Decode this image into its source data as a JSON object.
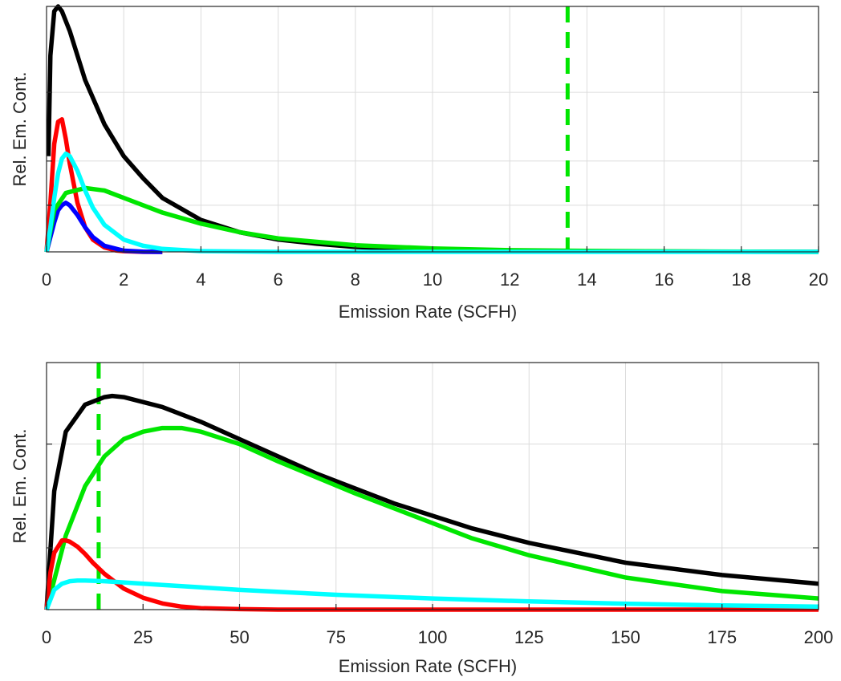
{
  "chart_data": [
    {
      "type": "line",
      "xlabel": "Emission Rate (SCFH)",
      "ylabel": "Rel. Em. Cont.",
      "xlim": [
        0,
        20
      ],
      "ylim": [
        0,
        1
      ],
      "x_ticks": [
        0,
        2,
        4,
        6,
        8,
        10,
        12,
        14,
        16,
        18,
        20
      ],
      "x_tick_labels": [
        "0",
        "2",
        "4",
        "6",
        "8",
        "10",
        "12",
        "14",
        "16",
        "18",
        "20"
      ],
      "y_ticks": [
        0.19,
        0.37,
        0.65
      ],
      "y_tick_labels": [
        "",
        "",
        ""
      ],
      "grid": true,
      "threshold": {
        "x": 13.5,
        "color": "#00e600"
      },
      "series": [
        {
          "color": "#000000",
          "x": [
            0.05,
            0.1,
            0.2,
            0.3,
            0.4,
            0.6,
            0.8,
            1.0,
            1.5,
            2,
            2.5,
            3,
            4,
            5,
            6,
            7,
            8,
            9,
            10,
            12,
            14,
            20
          ],
          "y": [
            0.39,
            0.8,
            0.98,
            1.0,
            0.98,
            0.9,
            0.8,
            0.7,
            0.52,
            0.39,
            0.3,
            0.22,
            0.13,
            0.08,
            0.05,
            0.033,
            0.02,
            0.013,
            0.009,
            0.004,
            0.002,
            0
          ]
        },
        {
          "color": "#ff0000",
          "x": [
            0,
            0.1,
            0.2,
            0.3,
            0.4,
            0.5,
            0.6,
            0.8,
            1.0,
            1.2,
            1.5,
            1.8,
            2,
            2.5,
            3
          ],
          "y": [
            0,
            0.2,
            0.44,
            0.53,
            0.54,
            0.46,
            0.36,
            0.2,
            0.1,
            0.05,
            0.018,
            0.006,
            0.003,
            0,
            0
          ]
        },
        {
          "color": "#0000ff",
          "x": [
            0,
            0.1,
            0.2,
            0.3,
            0.4,
            0.5,
            0.6,
            0.8,
            1.0,
            1.2,
            1.5,
            2,
            2.5,
            3
          ],
          "y": [
            0,
            0.06,
            0.12,
            0.17,
            0.19,
            0.2,
            0.19,
            0.15,
            0.1,
            0.06,
            0.025,
            0.005,
            0.001,
            0
          ]
        },
        {
          "color": "#00e600",
          "x": [
            0,
            0.2,
            0.5,
            1.0,
            1.5,
            2,
            3,
            4,
            5,
            6,
            8,
            10,
            12,
            14,
            16,
            20
          ],
          "y": [
            0,
            0.17,
            0.24,
            0.26,
            0.25,
            0.22,
            0.16,
            0.115,
            0.08,
            0.055,
            0.027,
            0.014,
            0.007,
            0.004,
            0.002,
            0
          ]
        },
        {
          "color": "#00ffff",
          "x": [
            0,
            0.1,
            0.2,
            0.3,
            0.4,
            0.5,
            0.6,
            0.8,
            1.0,
            1.2,
            1.5,
            2,
            2.5,
            3,
            4,
            6,
            20
          ],
          "y": [
            0,
            0.1,
            0.22,
            0.32,
            0.38,
            0.4,
            0.39,
            0.33,
            0.25,
            0.18,
            0.11,
            0.05,
            0.025,
            0.012,
            0.003,
            0,
            0
          ]
        }
      ]
    },
    {
      "type": "line",
      "xlabel": "Emission Rate (SCFH)",
      "ylabel": "Rel. Em. Cont.",
      "xlim": [
        0,
        200
      ],
      "ylim": [
        0,
        1
      ],
      "x_ticks": [
        0,
        25,
        50,
        75,
        100,
        125,
        150,
        175,
        200
      ],
      "x_tick_labels": [
        "0",
        "25",
        "50",
        "75",
        "100",
        "125",
        "150",
        "175",
        "200"
      ],
      "y_ticks": [
        0.25,
        0.67
      ],
      "y_tick_labels": [
        "",
        ""
      ],
      "grid": true,
      "threshold": {
        "x": 13.5,
        "color": "#00e600"
      },
      "series": [
        {
          "color": "#000000",
          "x": [
            0,
            2,
            5,
            10,
            15,
            17,
            20,
            30,
            40,
            50,
            60,
            70,
            80,
            90,
            100,
            110,
            125,
            150,
            175,
            200
          ],
          "y": [
            0,
            0.48,
            0.72,
            0.83,
            0.86,
            0.865,
            0.86,
            0.82,
            0.76,
            0.69,
            0.62,
            0.55,
            0.49,
            0.43,
            0.38,
            0.33,
            0.27,
            0.19,
            0.14,
            0.105
          ]
        },
        {
          "color": "#00e600",
          "x": [
            0,
            5,
            10,
            15,
            20,
            25,
            30,
            35,
            40,
            50,
            60,
            70,
            80,
            90,
            100,
            110,
            125,
            150,
            175,
            200
          ],
          "y": [
            0,
            0.3,
            0.5,
            0.62,
            0.69,
            0.72,
            0.735,
            0.735,
            0.72,
            0.67,
            0.6,
            0.535,
            0.47,
            0.41,
            0.35,
            0.29,
            0.22,
            0.13,
            0.075,
            0.045
          ]
        },
        {
          "color": "#ff0000",
          "x": [
            0,
            1,
            2,
            4,
            5,
            6,
            8,
            10,
            12,
            15,
            20,
            25,
            30,
            35,
            40,
            50,
            60,
            200
          ],
          "y": [
            0,
            0.15,
            0.23,
            0.28,
            0.28,
            0.275,
            0.255,
            0.225,
            0.19,
            0.145,
            0.085,
            0.048,
            0.025,
            0.012,
            0.006,
            0.002,
            0,
            0
          ]
        },
        {
          "color": "#00ffff",
          "x": [
            0,
            2,
            4,
            6,
            8,
            10,
            15,
            20,
            30,
            40,
            50,
            75,
            100,
            125,
            150,
            175,
            200
          ],
          "y": [
            0,
            0.08,
            0.105,
            0.115,
            0.118,
            0.118,
            0.115,
            0.11,
            0.1,
            0.09,
            0.08,
            0.06,
            0.045,
            0.033,
            0.024,
            0.017,
            0.012
          ]
        }
      ]
    }
  ]
}
